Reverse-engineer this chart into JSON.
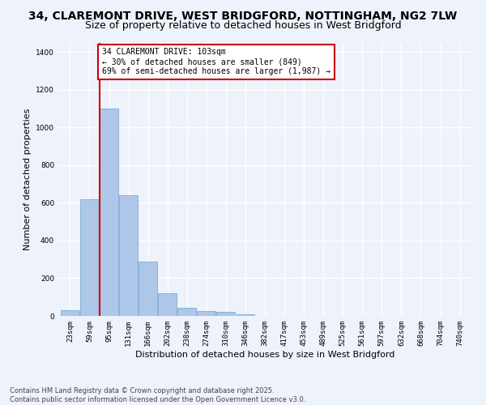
{
  "title_line1": "34, CLAREMONT DRIVE, WEST BRIDGFORD, NOTTINGHAM, NG2 7LW",
  "title_line2": "Size of property relative to detached houses in West Bridgford",
  "xlabel": "Distribution of detached houses by size in West Bridgford",
  "ylabel": "Number of detached properties",
  "categories": [
    "23sqm",
    "59sqm",
    "95sqm",
    "131sqm",
    "166sqm",
    "202sqm",
    "238sqm",
    "274sqm",
    "310sqm",
    "346sqm",
    "382sqm",
    "417sqm",
    "453sqm",
    "489sqm",
    "525sqm",
    "561sqm",
    "597sqm",
    "632sqm",
    "668sqm",
    "704sqm",
    "740sqm"
  ],
  "bar_values": [
    30,
    620,
    1100,
    640,
    290,
    120,
    45,
    25,
    20,
    10,
    0,
    0,
    0,
    0,
    0,
    0,
    0,
    0,
    0,
    0,
    0
  ],
  "bar_color": "#aec6e8",
  "bar_edge_color": "#7aaed6",
  "vline_position": 1.5,
  "annotation_title": "34 CLAREMONT DRIVE: 103sqm",
  "annotation_line1": "← 30% of detached houses are smaller (849)",
  "annotation_line2": "69% of semi-detached houses are larger (1,987) →",
  "annotation_box_facecolor": "#ffffff",
  "annotation_box_edgecolor": "#cc0000",
  "vline_color": "#cc0000",
  "ylim": [
    0,
    1450
  ],
  "yticks": [
    0,
    200,
    400,
    600,
    800,
    1000,
    1200,
    1400
  ],
  "footnote1": "Contains HM Land Registry data © Crown copyright and database right 2025.",
  "footnote2": "Contains public sector information licensed under the Open Government Licence v3.0.",
  "bg_color": "#eef2fb",
  "grid_color": "#ffffff",
  "title_fontsize": 10,
  "subtitle_fontsize": 9,
  "ylabel_fontsize": 8,
  "xlabel_fontsize": 8,
  "tick_fontsize": 6.5,
  "annot_fontsize": 7,
  "footnote_fontsize": 6
}
